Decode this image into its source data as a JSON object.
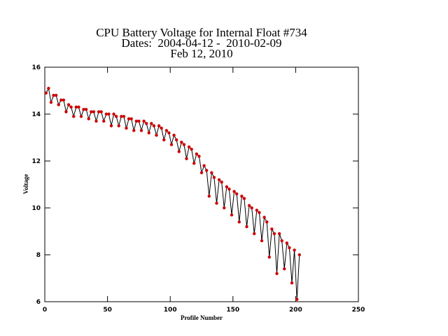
{
  "chart_data": {
    "type": "line",
    "title": "CPU Battery Voltage for Internal Float #734",
    "subtitle": "Dates:  2004-04-12 -  2010-02-09",
    "date_line": "Feb 12, 2010",
    "xlabel": "Profile Number",
    "ylabel": "Voltage",
    "xlim": [
      0,
      250
    ],
    "xticks": [
      0,
      50,
      100,
      150,
      200,
      250
    ],
    "ylim": [
      6,
      16
    ],
    "yticks": [
      6,
      8,
      10,
      12,
      14,
      16
    ],
    "x": [
      1,
      3,
      5,
      7,
      9,
      11,
      13,
      15,
      17,
      19,
      21,
      23,
      25,
      27,
      29,
      31,
      33,
      35,
      37,
      39,
      41,
      43,
      45,
      47,
      49,
      51,
      53,
      55,
      57,
      59,
      61,
      63,
      65,
      67,
      69,
      71,
      73,
      75,
      77,
      79,
      81,
      83,
      85,
      87,
      89,
      91,
      93,
      95,
      97,
      99,
      101,
      103,
      105,
      107,
      109,
      111,
      113,
      115,
      117,
      119,
      121,
      123,
      125,
      127,
      129,
      131,
      133,
      135,
      137,
      139,
      141,
      143,
      145,
      147,
      149,
      151,
      153,
      155,
      157,
      159,
      161,
      163,
      165,
      167,
      169,
      171,
      173,
      175,
      177,
      179,
      181,
      183,
      185,
      187,
      189,
      191,
      193,
      195,
      197,
      199,
      201,
      203
    ],
    "series": [
      {
        "name": "Voltage",
        "color": "#000000",
        "marker_color": "#cc0000",
        "values": [
          14.9,
          15.1,
          14.5,
          14.8,
          14.8,
          14.4,
          14.6,
          14.6,
          14.1,
          14.4,
          14.3,
          13.9,
          14.3,
          14.3,
          13.9,
          14.2,
          14.2,
          13.8,
          14.1,
          14.1,
          13.7,
          14.1,
          14.1,
          13.7,
          14.0,
          14.0,
          13.5,
          14.0,
          13.9,
          13.5,
          13.9,
          13.9,
          13.4,
          13.8,
          13.8,
          13.3,
          13.7,
          13.7,
          13.3,
          13.7,
          13.6,
          13.2,
          13.6,
          13.5,
          13.1,
          13.5,
          13.4,
          12.9,
          13.3,
          13.2,
          12.7,
          13.1,
          12.9,
          12.4,
          12.8,
          12.7,
          12.1,
          12.6,
          12.5,
          11.9,
          12.3,
          12.2,
          11.5,
          11.8,
          11.6,
          10.5,
          11.5,
          11.3,
          10.2,
          11.2,
          11.1,
          10.0,
          10.9,
          10.8,
          9.7,
          10.7,
          10.6,
          9.4,
          10.5,
          10.4,
          9.2,
          10.1,
          10.0,
          8.9,
          9.9,
          9.8,
          8.6,
          9.6,
          9.4,
          7.9,
          9.1,
          8.9,
          7.2,
          8.9,
          8.6,
          7.4,
          8.5,
          8.3,
          6.8,
          8.2,
          6.1,
          8.0
        ]
      }
    ]
  }
}
